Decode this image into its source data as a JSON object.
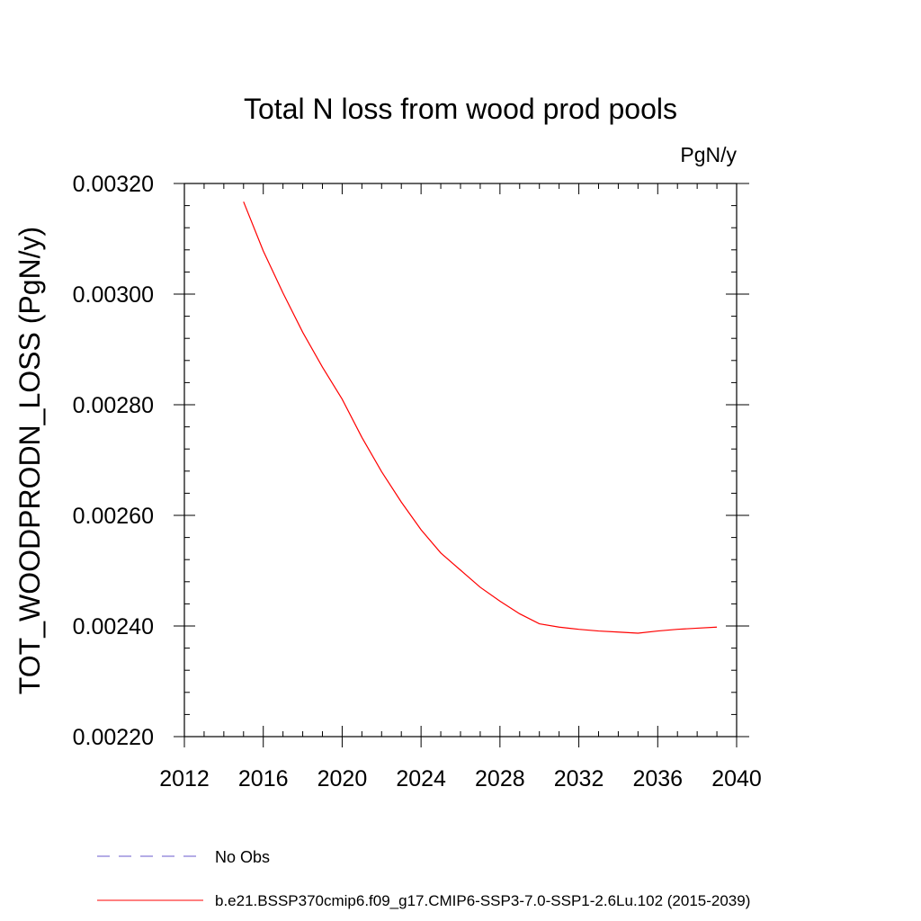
{
  "chart_data": {
    "type": "line",
    "title": "Total N loss from wood prod pools",
    "units_label": "PgN/y",
    "ylabel": "TOT_WOODPRODN_LOSS  (PgN/y)",
    "xlabel": "",
    "xlim": [
      2012,
      2040
    ],
    "ylim": [
      0.0022,
      0.0032
    ],
    "x_ticks": [
      "2012",
      "2016",
      "2020",
      "2024",
      "2028",
      "2032",
      "2036",
      "2040"
    ],
    "y_ticks": [
      "0.00220",
      "0.00240",
      "0.00260",
      "0.00280",
      "0.00300",
      "0.00320"
    ],
    "grid": false,
    "legend_position": "bottom-left",
    "series": [
      {
        "name": "No Obs",
        "color": "#6a5acd",
        "style": "dashed",
        "x": [],
        "values": []
      },
      {
        "name": "b.e21.BSSP370cmip6.f09_g17.CMIP6-SSP3-7.0-SSP1-2.6Lu.102 (2015-2039)",
        "color": "#ff0000",
        "style": "solid",
        "x": [
          2015,
          2016,
          2017,
          2018,
          2019,
          2020,
          2021,
          2022,
          2023,
          2024,
          2025,
          2026,
          2027,
          2028,
          2029,
          2030,
          2031,
          2032,
          2033,
          2034,
          2035,
          2036,
          2037,
          2038,
          2039
        ],
        "values": [
          0.003167,
          0.003078,
          0.003002,
          0.002931,
          0.002868,
          0.00281,
          0.002741,
          0.002679,
          0.002624,
          0.002574,
          0.002532,
          0.002501,
          0.00247,
          0.002445,
          0.002422,
          0.002404,
          0.002398,
          0.002394,
          0.002391,
          0.002389,
          0.002387,
          0.002391,
          0.002394,
          0.002396,
          0.002398
        ]
      }
    ]
  }
}
